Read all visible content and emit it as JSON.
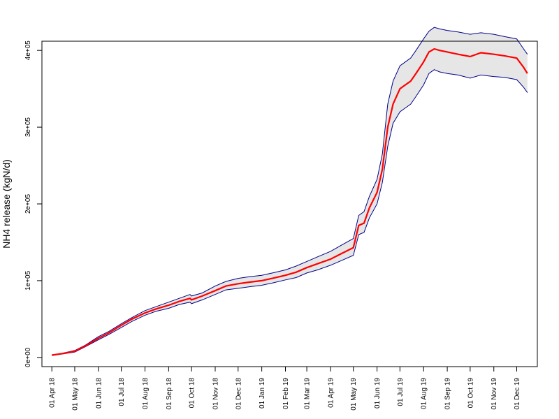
{
  "chart_data": {
    "type": "line",
    "title": "",
    "xlabel": "",
    "ylabel": "NH4 release (kgN/d)",
    "xlim": [
      "2018-03-19",
      "2019-12-28"
    ],
    "ylim": [
      -12000,
      412000
    ],
    "x_ticks": [
      {
        "date": "2018-04-01",
        "label": "01 Apr 18"
      },
      {
        "date": "2018-05-01",
        "label": "01 May 18"
      },
      {
        "date": "2018-06-01",
        "label": "01 Jun 18"
      },
      {
        "date": "2018-07-01",
        "label": "01 Jul 18"
      },
      {
        "date": "2018-08-01",
        "label": "01 Aug 18"
      },
      {
        "date": "2018-09-01",
        "label": "01 Sep 18"
      },
      {
        "date": "2018-10-01",
        "label": "01 Oct 18"
      },
      {
        "date": "2018-11-01",
        "label": "01 Nov 18"
      },
      {
        "date": "2018-12-01",
        "label": "01 Dec 18"
      },
      {
        "date": "2019-01-01",
        "label": "01 Jan 19"
      },
      {
        "date": "2019-02-01",
        "label": "01 Feb 19"
      },
      {
        "date": "2019-03-01",
        "label": "01 Mar 19"
      },
      {
        "date": "2019-04-01",
        "label": "01 Apr 19"
      },
      {
        "date": "2019-05-01",
        "label": "01 May 19"
      },
      {
        "date": "2019-06-01",
        "label": "01 Jun 19"
      },
      {
        "date": "2019-07-01",
        "label": "01 Jul 19"
      },
      {
        "date": "2019-08-01",
        "label": "01 Aug 19"
      },
      {
        "date": "2019-09-01",
        "label": "01 Sep 19"
      },
      {
        "date": "2019-10-01",
        "label": "01 Oct 19"
      },
      {
        "date": "2019-11-01",
        "label": "01 Nov 19"
      },
      {
        "date": "2019-12-01",
        "label": "01 Dec 19"
      }
    ],
    "y_ticks": [
      {
        "value": 0,
        "label": "0e+00"
      },
      {
        "value": 100000,
        "label": "1e+05"
      },
      {
        "value": 200000,
        "label": "2e+05"
      },
      {
        "value": 300000,
        "label": "3e+05"
      },
      {
        "value": 400000,
        "label": "4e+05"
      }
    ],
    "grid": false,
    "legend": "none",
    "x": [
      "2018-04-01",
      "2018-04-15",
      "2018-05-01",
      "2018-05-15",
      "2018-06-01",
      "2018-06-15",
      "2018-07-01",
      "2018-07-15",
      "2018-08-01",
      "2018-08-15",
      "2018-09-01",
      "2018-09-15",
      "2018-09-29",
      "2018-10-01",
      "2018-10-15",
      "2018-11-01",
      "2018-11-15",
      "2018-12-01",
      "2018-12-15",
      "2019-01-01",
      "2019-01-15",
      "2019-02-01",
      "2019-02-15",
      "2019-03-01",
      "2019-03-15",
      "2019-04-01",
      "2019-04-15",
      "2019-05-01",
      "2019-05-08",
      "2019-05-15",
      "2019-05-22",
      "2019-06-01",
      "2019-06-08",
      "2019-06-15",
      "2019-06-22",
      "2019-07-01",
      "2019-07-08",
      "2019-07-15",
      "2019-07-22",
      "2019-08-01",
      "2019-08-08",
      "2019-08-15",
      "2019-08-22",
      "2019-09-01",
      "2019-09-15",
      "2019-10-01",
      "2019-10-15",
      "2019-11-01",
      "2019-11-15",
      "2019-12-01",
      "2019-12-10",
      "2019-12-15"
    ],
    "series": [
      {
        "role": "estimate",
        "color": "#ff0000",
        "values": [
          3000,
          5000,
          8000,
          15000,
          25000,
          32000,
          42000,
          50000,
          58000,
          63000,
          68000,
          73000,
          77000,
          75000,
          80000,
          87000,
          93000,
          96000,
          98000,
          100000,
          103000,
          107000,
          111000,
          117000,
          122000,
          128000,
          135000,
          143000,
          172000,
          175000,
          195000,
          215000,
          245000,
          300000,
          330000,
          350000,
          355000,
          360000,
          370000,
          385000,
          398000,
          402000,
          400000,
          398000,
          395000,
          392000,
          397000,
          395000,
          393000,
          390000,
          378000,
          370000
        ]
      },
      {
        "role": "upper-bound",
        "color": "#00008b",
        "values": [
          3000,
          5500,
          9000,
          16000,
          27000,
          34000,
          44000,
          52000,
          61000,
          66000,
          72000,
          77000,
          82000,
          80000,
          84000,
          93000,
          99000,
          103000,
          105000,
          107000,
          110000,
          114000,
          119000,
          125000,
          131000,
          138000,
          146000,
          155000,
          185000,
          190000,
          210000,
          232000,
          265000,
          330000,
          360000,
          380000,
          385000,
          390000,
          400000,
          415000,
          425000,
          430000,
          428000,
          426000,
          424000,
          421000,
          423000,
          421000,
          418000,
          415000,
          402000,
          395000
        ]
      },
      {
        "role": "lower-bound",
        "color": "#00008b",
        "values": [
          2500,
          4500,
          7000,
          14000,
          23000,
          30000,
          39000,
          47000,
          55000,
          60000,
          64000,
          69000,
          72000,
          70000,
          75000,
          82000,
          88000,
          90000,
          92000,
          94000,
          97000,
          101000,
          104000,
          110000,
          114000,
          120000,
          126000,
          133000,
          160000,
          163000,
          182000,
          200000,
          228000,
          275000,
          305000,
          320000,
          325000,
          330000,
          340000,
          355000,
          370000,
          375000,
          372000,
          370000,
          368000,
          364000,
          368000,
          366000,
          365000,
          362000,
          352000,
          345000
        ]
      }
    ],
    "band_fill": "#e6e6e6"
  }
}
